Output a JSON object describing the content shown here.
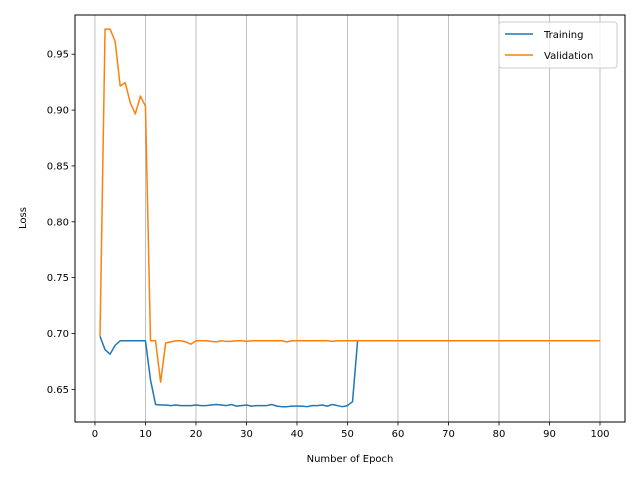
{
  "chart_data": {
    "type": "line",
    "title": "",
    "xlabel": "Number of Epoch",
    "ylabel": "Loss",
    "xlim": [
      -3.95,
      104.95
    ],
    "ylim": [
      0.6208,
      0.9851
    ],
    "xticks": [
      0,
      10,
      20,
      30,
      40,
      50,
      60,
      70,
      80,
      90,
      100
    ],
    "xtick_labels": [
      "0",
      "10",
      "20",
      "30",
      "40",
      "50",
      "60",
      "70",
      "80",
      "90",
      "100"
    ],
    "yticks": [
      0.65,
      0.7,
      0.75,
      0.8,
      0.85,
      0.9,
      0.95
    ],
    "ytick_labels": [
      "0.65",
      "0.70",
      "0.75",
      "0.80",
      "0.85",
      "0.90",
      "0.95"
    ],
    "grid": "vertical",
    "legend_position": "top-right",
    "x": [
      1,
      2,
      3,
      4,
      5,
      6,
      7,
      8,
      9,
      10,
      11,
      12,
      13,
      14,
      15,
      16,
      17,
      18,
      19,
      20,
      21,
      22,
      23,
      24,
      25,
      26,
      27,
      28,
      29,
      30,
      31,
      32,
      33,
      34,
      35,
      36,
      37,
      38,
      39,
      40,
      41,
      42,
      43,
      44,
      45,
      46,
      47,
      48,
      49,
      50,
      51,
      52,
      53,
      54,
      55,
      56,
      57,
      58,
      59,
      60,
      61,
      62,
      63,
      64,
      65,
      66,
      67,
      68,
      69,
      70,
      71,
      72,
      73,
      74,
      75,
      76,
      77,
      78,
      79,
      80,
      81,
      82,
      83,
      84,
      85,
      86,
      87,
      88,
      89,
      90,
      91,
      92,
      93,
      94,
      95,
      96,
      97,
      98,
      99,
      100
    ],
    "series": [
      {
        "name": "Training",
        "color": "#1f77b4",
        "values": [
          0.6975,
          0.6855,
          0.6815,
          0.6895,
          0.6935,
          0.6935,
          0.6935,
          0.6935,
          0.6935,
          0.6935,
          0.6585,
          0.6365,
          0.636,
          0.636,
          0.6355,
          0.636,
          0.6355,
          0.6355,
          0.6355,
          0.636,
          0.6355,
          0.6355,
          0.636,
          0.6365,
          0.636,
          0.6355,
          0.6365,
          0.635,
          0.6355,
          0.636,
          0.635,
          0.6355,
          0.6355,
          0.6355,
          0.6365,
          0.635,
          0.6345,
          0.6345,
          0.635,
          0.635,
          0.635,
          0.6345,
          0.6355,
          0.6355,
          0.636,
          0.635,
          0.6365,
          0.6355,
          0.6345,
          0.6355,
          0.639,
          0.6935,
          0.6935,
          0.6935,
          0.6935,
          0.6935,
          0.6935,
          0.6935,
          0.6935,
          0.6935,
          0.6935,
          0.6935,
          0.6935,
          0.6935,
          0.6935,
          0.6935,
          0.6935,
          0.6935,
          0.6935,
          0.6935,
          0.6935,
          0.6935,
          0.6935,
          0.6935,
          0.6935,
          0.6935,
          0.6935,
          0.6935,
          0.6935,
          0.6935,
          0.6935,
          0.6935,
          0.6935,
          0.6935,
          0.6935,
          0.6935,
          0.6935,
          0.6935,
          0.6935,
          0.6935,
          0.6935,
          0.6935,
          0.6935,
          0.6935,
          0.6935,
          0.6935,
          0.6935,
          0.6935,
          0.6935,
          0.6935
        ]
      },
      {
        "name": "Validation",
        "color": "#ff7f0e",
        "values": [
          0.6975,
          0.9725,
          0.9725,
          0.9615,
          0.9215,
          0.9245,
          0.9065,
          0.8965,
          0.9125,
          0.9035,
          0.6935,
          0.6935,
          0.6565,
          0.6915,
          0.6925,
          0.6935,
          0.6935,
          0.6925,
          0.6905,
          0.6935,
          0.6935,
          0.6935,
          0.693,
          0.6925,
          0.6935,
          0.693,
          0.693,
          0.6935,
          0.6935,
          0.693,
          0.6935,
          0.6935,
          0.6935,
          0.6935,
          0.6935,
          0.6935,
          0.6935,
          0.6925,
          0.6935,
          0.6935,
          0.6935,
          0.6935,
          0.6935,
          0.6935,
          0.6935,
          0.6935,
          0.693,
          0.6935,
          0.6935,
          0.6935,
          0.6935,
          0.6935,
          0.6935,
          0.6935,
          0.6935,
          0.6935,
          0.6935,
          0.6935,
          0.6935,
          0.6935,
          0.6935,
          0.6935,
          0.6935,
          0.6935,
          0.6935,
          0.6935,
          0.6935,
          0.6935,
          0.6935,
          0.6935,
          0.6935,
          0.6935,
          0.6935,
          0.6935,
          0.6935,
          0.6935,
          0.6935,
          0.6935,
          0.6935,
          0.6935,
          0.6935,
          0.6935,
          0.6935,
          0.6935,
          0.6935,
          0.6935,
          0.6935,
          0.6935,
          0.6935,
          0.6935,
          0.6935,
          0.6935,
          0.6935,
          0.6935,
          0.6935,
          0.6935,
          0.6935,
          0.6935,
          0.6935,
          0.6935
        ]
      }
    ]
  }
}
